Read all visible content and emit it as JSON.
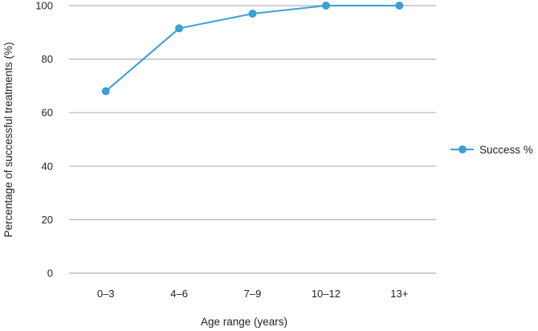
{
  "chart_data": {
    "type": "line",
    "categories": [
      "0–3",
      "4–6",
      "7–9",
      "10–12",
      "13+"
    ],
    "series": [
      {
        "name": "Success %",
        "values": [
          68,
          91.5,
          97,
          100,
          100
        ]
      }
    ],
    "xlabel": "Age range (years)",
    "ylabel": "Percentage of successful treatments (%)",
    "ylim": [
      0,
      100
    ],
    "yticks": [
      0,
      20,
      40,
      60,
      80,
      100
    ],
    "grid": true,
    "legend_position": "right",
    "colors": {
      "series": "#3a9fd6",
      "grid": "#b3b3b3",
      "text": "#231f20"
    }
  }
}
